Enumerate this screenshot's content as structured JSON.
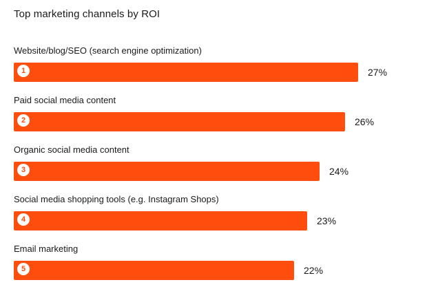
{
  "chart_data": {
    "type": "bar",
    "orientation": "horizontal",
    "title": "Top marketing channels by ROI",
    "categories": [
      "Website/blog/SEO (search engine optimization)",
      "Paid social media content",
      "Organic social media content",
      "Social media shopping tools (e.g. Instagram Shops)",
      "Email marketing"
    ],
    "ranks": [
      "1",
      "2",
      "3",
      "4",
      "5"
    ],
    "values": [
      27,
      26,
      24,
      23,
      22
    ],
    "value_labels": [
      "27%",
      "26%",
      "24%",
      "23%",
      "22%"
    ],
    "unit": "%",
    "bar_color": "#ff4d0d",
    "rank_text_color": "#ff4d0d",
    "legend": "none",
    "grid": false
  }
}
